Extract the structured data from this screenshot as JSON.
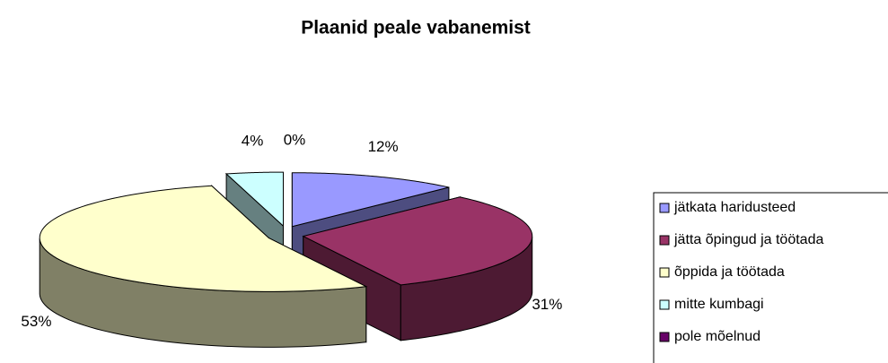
{
  "chart_data": {
    "type": "pie3d",
    "title": "Plaanid peale vabanemist",
    "categories": [
      "jätkata haridusteed",
      "jätta õpingud ja töötada",
      "õppida ja töötada",
      "mitte kumbagi",
      "pole mõelnud"
    ],
    "values": [
      12,
      31,
      53,
      4,
      0
    ],
    "value_labels": [
      "12%",
      "31%",
      "53%",
      "4%",
      "0%"
    ],
    "colors": [
      "#9999ff",
      "#993366",
      "#ffffcc",
      "#ccffff",
      "#660066"
    ]
  }
}
